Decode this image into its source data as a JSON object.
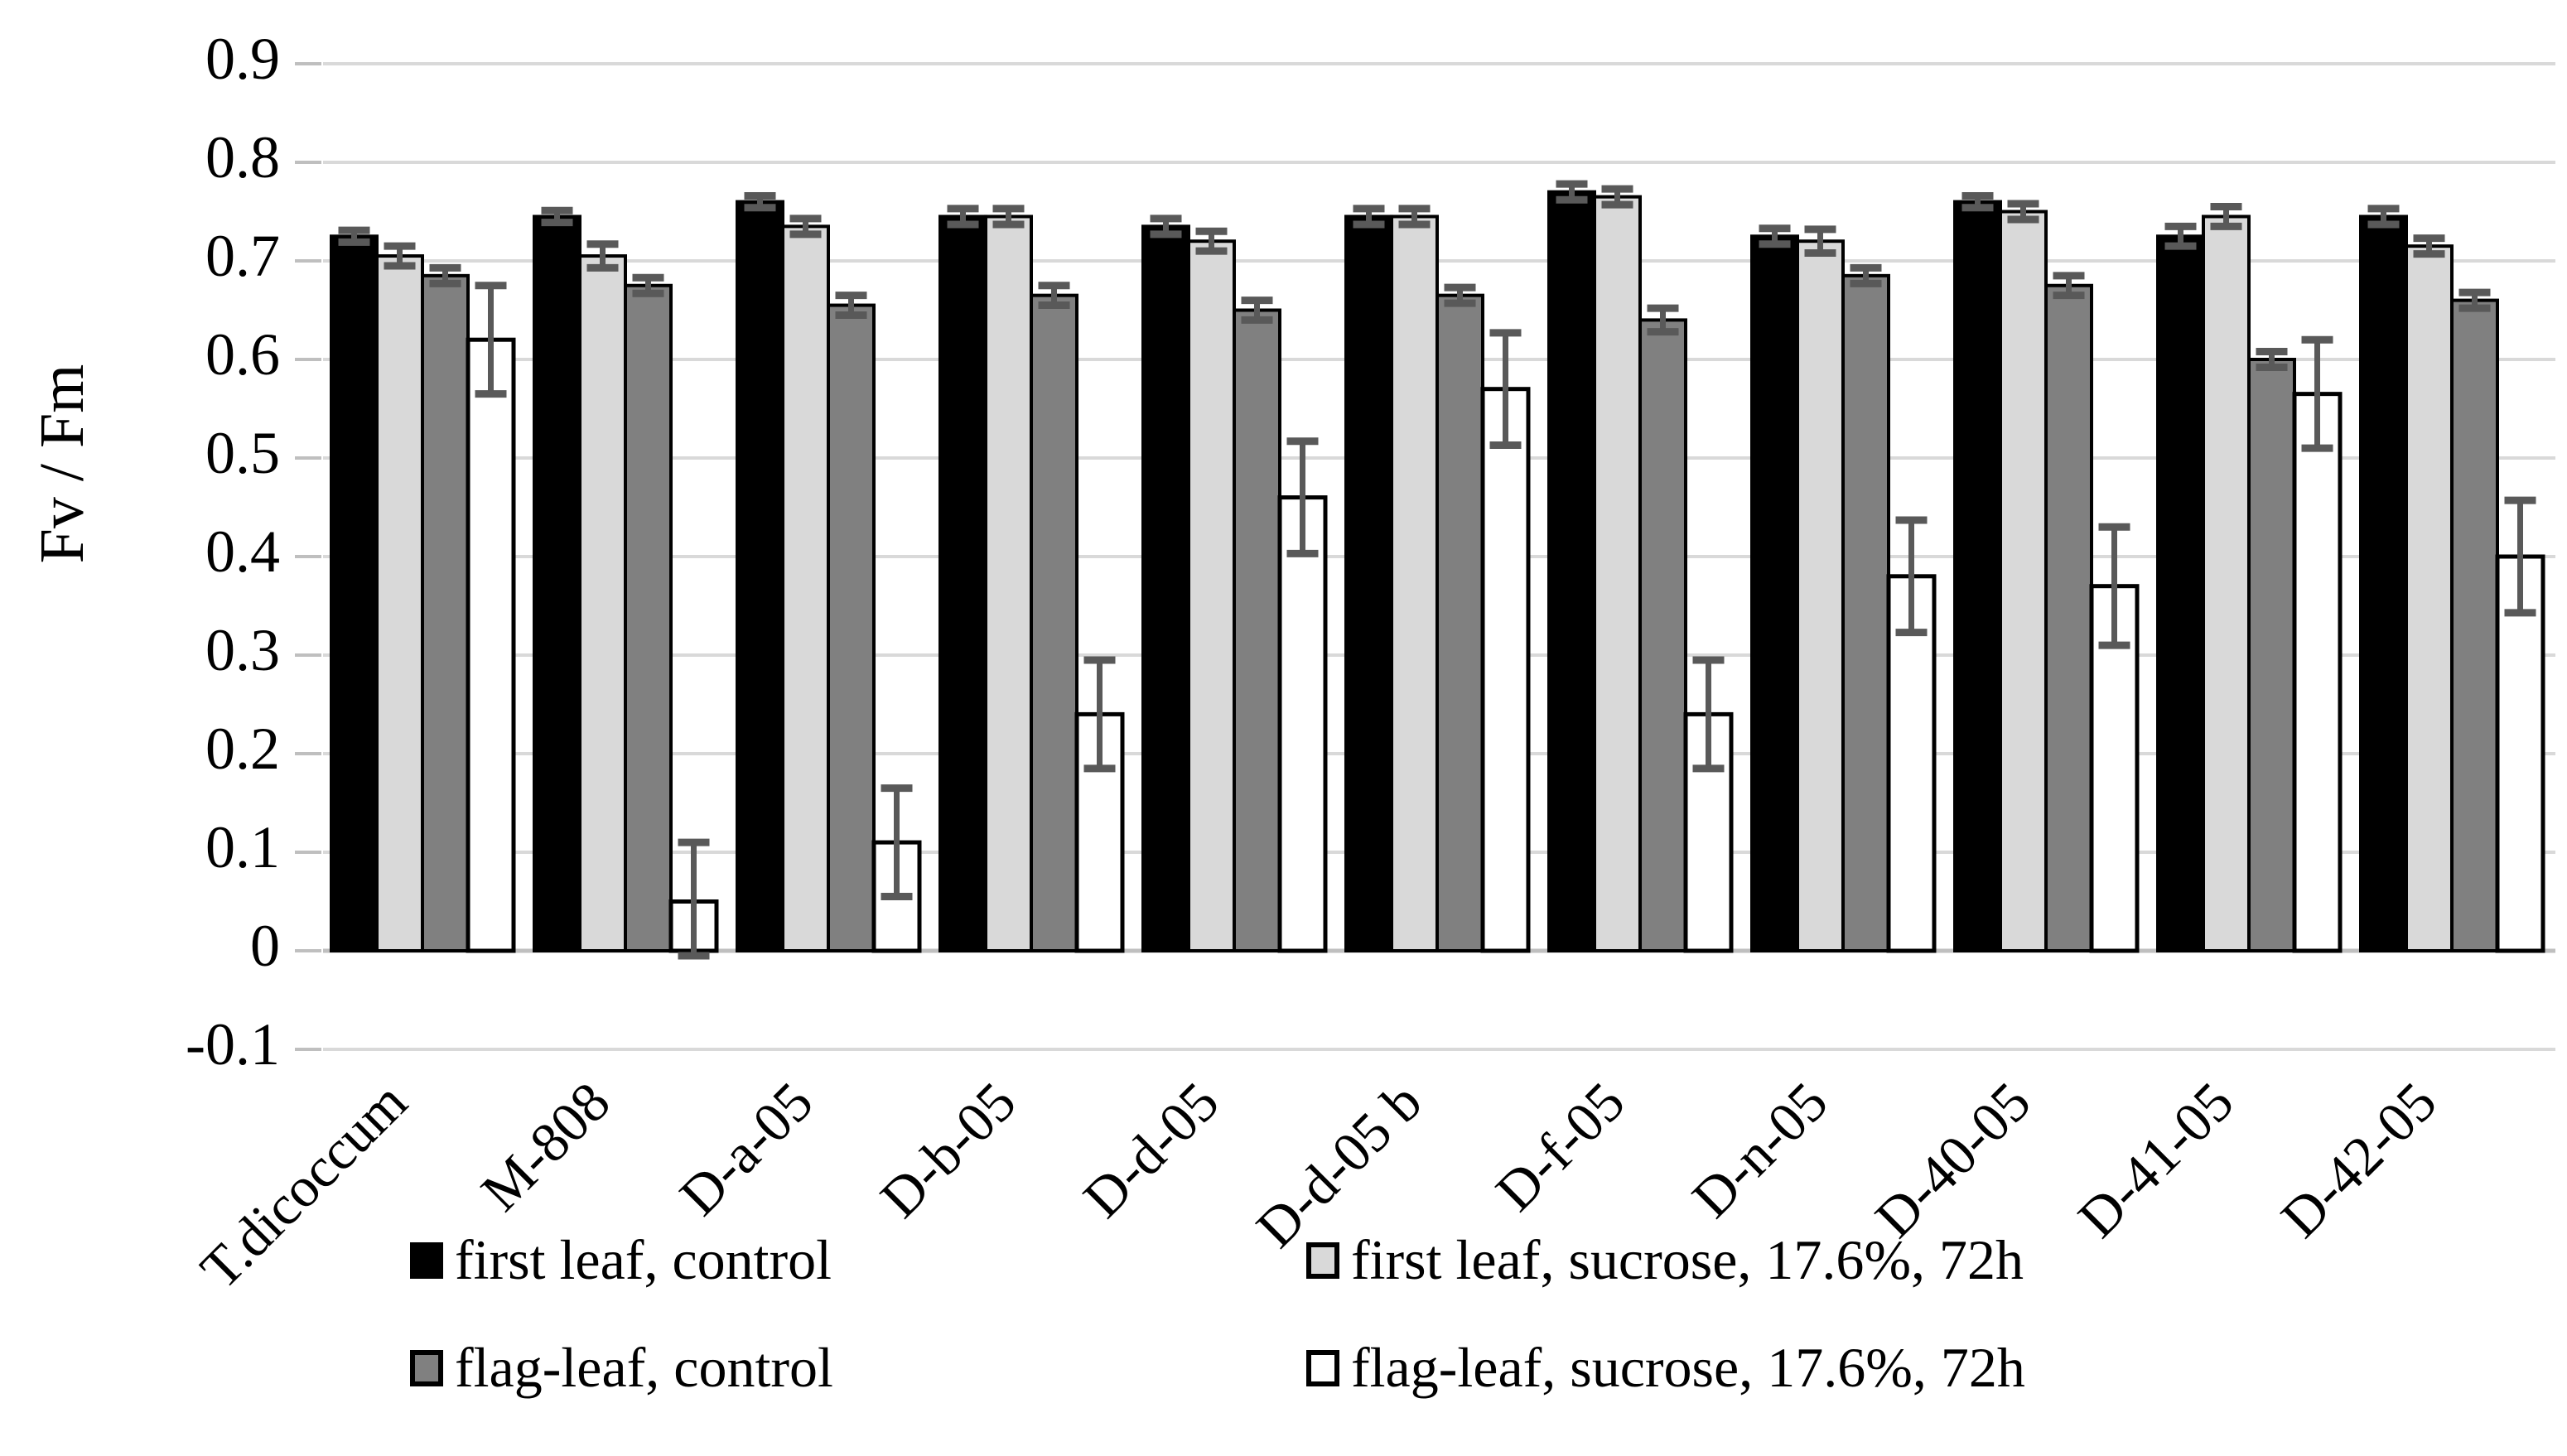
{
  "chart_data": {
    "type": "bar",
    "title": "",
    "xlabel": "",
    "ylabel": "Fv / Fm",
    "ylim": [
      -0.1,
      0.9
    ],
    "grid": true,
    "legend_position": "bottom",
    "y_ticks": [
      {
        "value": 0.9,
        "label": "0.9"
      },
      {
        "value": 0.8,
        "label": "0.8"
      },
      {
        "value": 0.7,
        "label": "0.7"
      },
      {
        "value": 0.6,
        "label": "0.6"
      },
      {
        "value": 0.5,
        "label": "0.5"
      },
      {
        "value": 0.4,
        "label": "0.4"
      },
      {
        "value": 0.3,
        "label": "0.3"
      },
      {
        "value": 0.2,
        "label": "0.2"
      },
      {
        "value": 0.1,
        "label": "0.1"
      },
      {
        "value": 0.0,
        "label": "0"
      },
      {
        "value": -0.1,
        "label": "-0.1"
      }
    ],
    "categories": [
      "T.dicoccum",
      "M-808",
      "D-a-05",
      "D-b-05",
      "D-d-05",
      "D-d-05 b",
      "D-f-05",
      "D-n-05",
      "D-40-05",
      "D-41-05",
      "D-42-05"
    ],
    "series": [
      {
        "name": "first leaf, control",
        "color": "#000000",
        "values": [
          0.725,
          0.745,
          0.76,
          0.745,
          0.735,
          0.745,
          0.77,
          0.725,
          0.76,
          0.725,
          0.745
        ],
        "errors": [
          0.006,
          0.006,
          0.006,
          0.008,
          0.008,
          0.008,
          0.008,
          0.008,
          0.006,
          0.01,
          0.008
        ]
      },
      {
        "name": "first leaf, sucrose, 17.6%, 72h",
        "color": "#d9d9d9",
        "values": [
          0.705,
          0.705,
          0.735,
          0.745,
          0.72,
          0.745,
          0.765,
          0.72,
          0.75,
          0.745,
          0.715
        ],
        "errors": [
          0.01,
          0.012,
          0.008,
          0.008,
          0.01,
          0.008,
          0.008,
          0.012,
          0.008,
          0.01,
          0.008
        ]
      },
      {
        "name": "flag-leaf, control",
        "color": "#808080",
        "values": [
          0.685,
          0.675,
          0.655,
          0.665,
          0.65,
          0.665,
          0.64,
          0.685,
          0.675,
          0.6,
          0.66
        ],
        "errors": [
          0.008,
          0.008,
          0.01,
          0.01,
          0.01,
          0.008,
          0.012,
          0.008,
          0.01,
          0.008,
          0.008
        ]
      },
      {
        "name": "flag-leaf, sucrose, 17.6%, 72h",
        "color": "#ffffff",
        "values": [
          0.62,
          0.05,
          0.11,
          0.24,
          0.46,
          0.57,
          0.24,
          0.38,
          0.37,
          0.565,
          0.4
        ],
        "errors": [
          0.055,
          0.06,
          0.055,
          0.055,
          0.057,
          0.057,
          0.055,
          0.057,
          0.06,
          0.055,
          0.057
        ]
      }
    ],
    "style": {
      "gridline_color": "#d9d9d9",
      "baseline_color": "#bfbfbf",
      "tick_color": "#bfbfbf",
      "error_bar_color": "#595959",
      "bar_outline_color": "#000000"
    }
  }
}
